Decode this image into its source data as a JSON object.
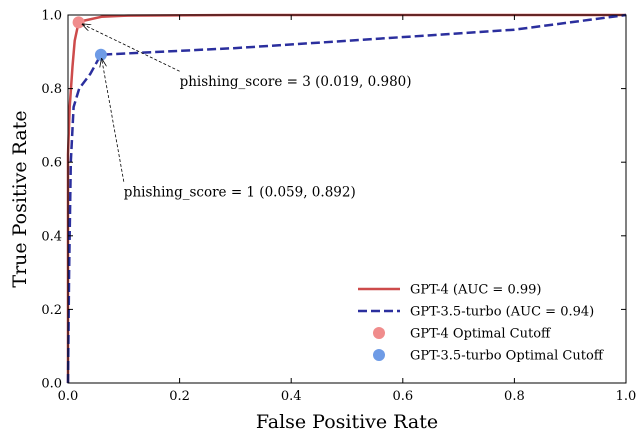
{
  "chart_data": {
    "type": "line",
    "title": "",
    "xlabel": "False Positive Rate",
    "ylabel": "True Positive Rate",
    "xlim": [
      0.0,
      1.0
    ],
    "ylim": [
      0.0,
      1.0
    ],
    "xticks": [
      "0.0",
      "0.2",
      "0.4",
      "0.6",
      "0.8",
      "1.0"
    ],
    "yticks": [
      "0.0",
      "0.2",
      "0.4",
      "0.6",
      "0.8",
      "1.0"
    ],
    "grid": false,
    "legend_position": "lower-right",
    "series": [
      {
        "name": "GPT-4 (AUC = 0.99)",
        "style": "solid",
        "color": "#cd4b4b",
        "x": [
          0.0,
          0.0,
          0.003,
          0.008,
          0.012,
          0.019,
          0.03,
          0.06,
          0.1,
          0.3,
          1.0
        ],
        "y": [
          0.0,
          0.62,
          0.75,
          0.86,
          0.93,
          0.98,
          0.985,
          0.995,
          0.998,
          1.0,
          1.0
        ]
      },
      {
        "name": "GPT-3.5-turbo (AUC = 0.94)",
        "style": "dashed",
        "color": "#2b2f9e",
        "x": [
          0.0,
          0.002,
          0.005,
          0.01,
          0.02,
          0.04,
          0.059,
          0.3,
          0.5,
          0.8,
          1.0
        ],
        "y": [
          0.0,
          0.3,
          0.6,
          0.75,
          0.8,
          0.84,
          0.892,
          0.91,
          0.93,
          0.96,
          1.0
        ]
      }
    ],
    "points": [
      {
        "name": "GPT-4 Optimal Cutoff",
        "x": 0.019,
        "y": 0.98,
        "color": "#f08c8c"
      },
      {
        "name": "GPT-3.5-turbo Optimal Cutoff",
        "x": 0.059,
        "y": 0.892,
        "color": "#6e9be6"
      }
    ],
    "annotations": [
      {
        "text": "phishing_score = 3 (0.019, 0.980)",
        "text_x": 0.2,
        "text_y": 0.82,
        "target_x": 0.019,
        "target_y": 0.98
      },
      {
        "text": "phishing_score = 1 (0.059, 0.892)",
        "text_x": 0.1,
        "text_y": 0.52,
        "target_x": 0.059,
        "target_y": 0.892
      }
    ]
  }
}
